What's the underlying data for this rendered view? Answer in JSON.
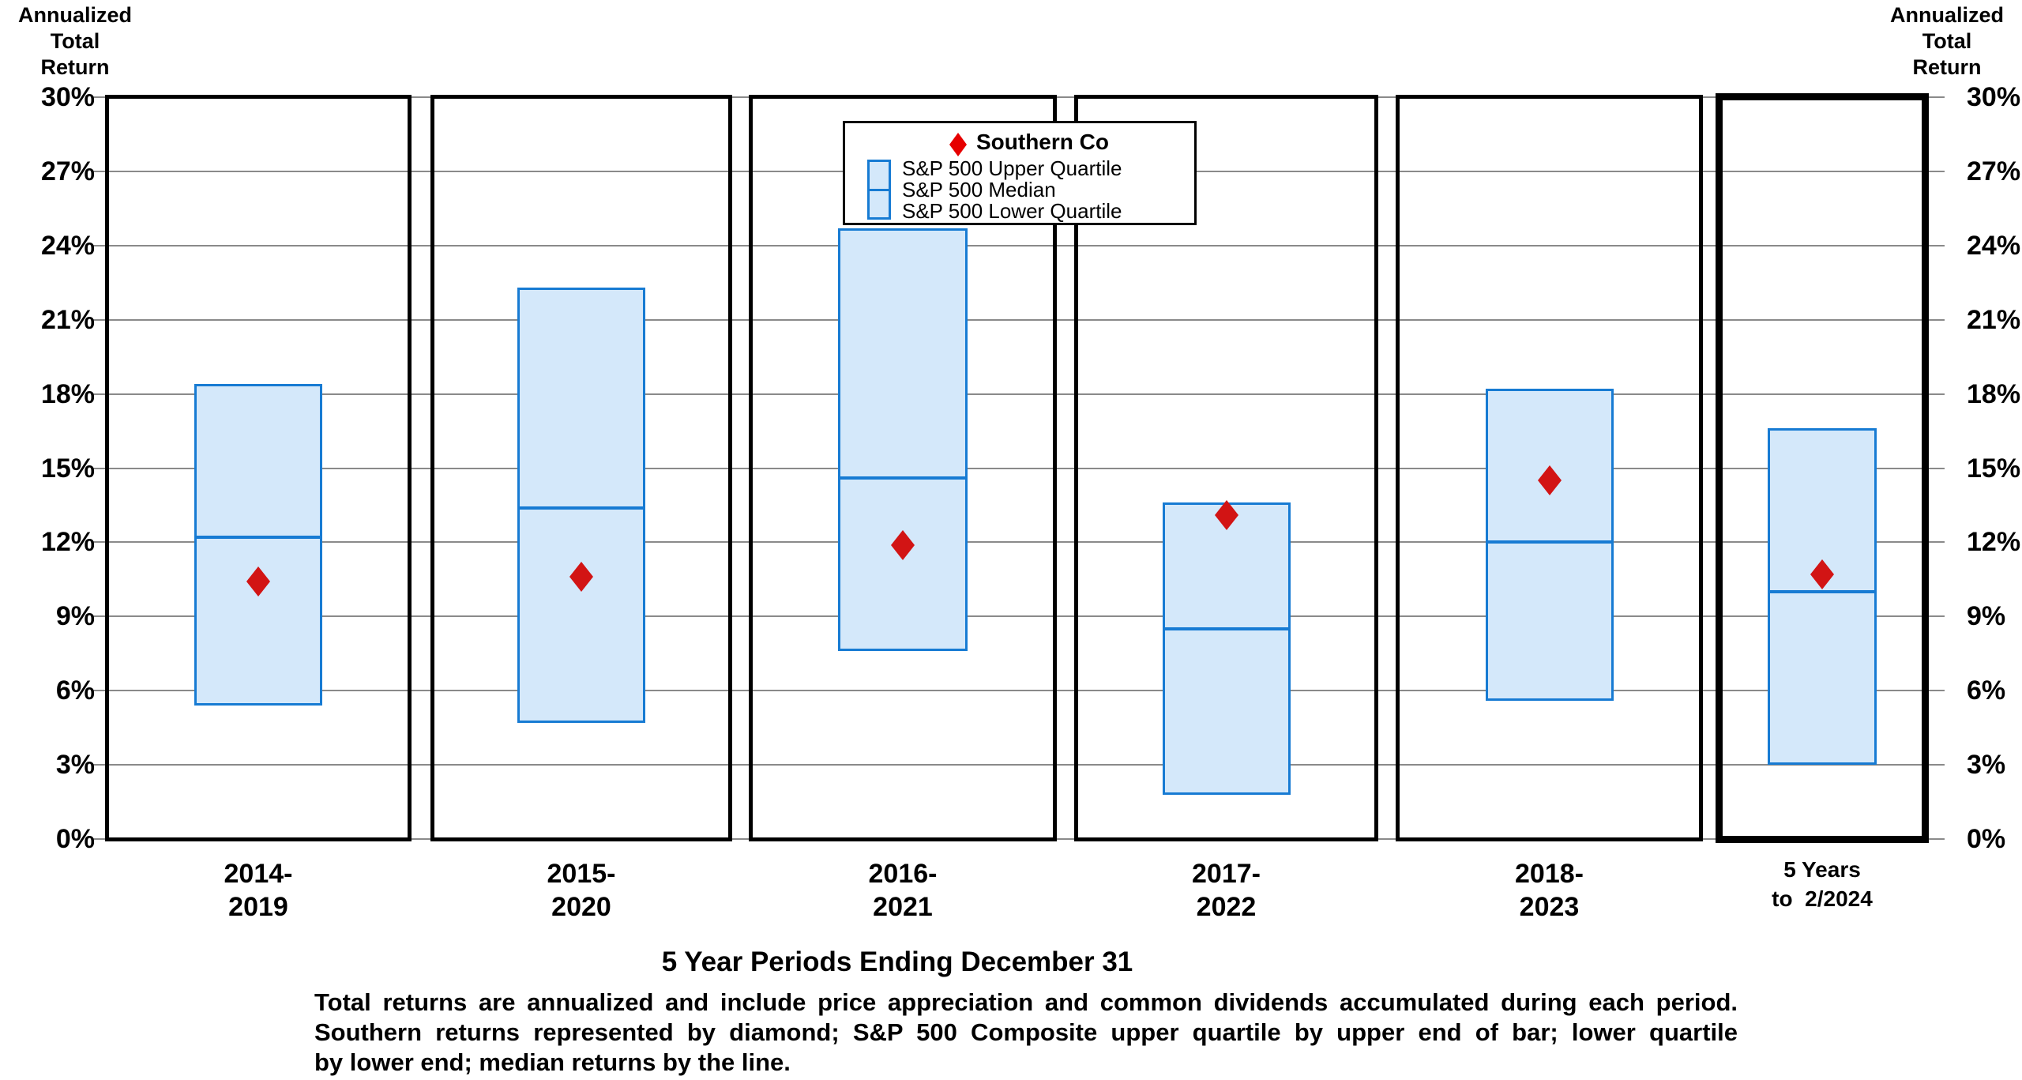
{
  "left_axis_header": {
    "line1": "Annualized",
    "line2": "Total",
    "line3": "Return"
  },
  "right_axis_header": {
    "line1": "Annualized",
    "line2": "Total",
    "line3": "Return"
  },
  "legend": {
    "series1_label": "Southern Co",
    "items": [
      "S&P 500 Upper Quartile",
      "S&P 500 Median",
      "S&P 500 Lower Quartile"
    ]
  },
  "x_axis_title": "5 Year Periods Ending December 31",
  "footnote": {
    "line1": "Total returns are annualized and include price appreciation and common dividends accumulated during each period.",
    "line2": "Southern returns represented by diamond; S&P 500 Composite upper quartile by upper end of bar; lower quartile",
    "line3": "by lower end; median returns by the line."
  },
  "colors": {
    "bar_fill": "#d4e8fa",
    "bar_border": "#177bd3",
    "diamond": "#d21414",
    "gridline": "#8a8a8a",
    "panel_border": "#000000"
  },
  "chart_data": {
    "type": "bar",
    "variant": "floating-quartile-range-with-point-marker",
    "categories": [
      [
        "2014-",
        "2019"
      ],
      [
        "2015-",
        "2020"
      ],
      [
        "2016-",
        "2021"
      ],
      [
        "2017-",
        "2022"
      ],
      [
        "2018-",
        "2023"
      ],
      [
        "5 Years",
        "to  2/2024"
      ]
    ],
    "series": [
      {
        "name": "Southern Co",
        "marker": "diamond",
        "values": [
          10.4,
          10.6,
          11.9,
          13.1,
          14.5,
          10.7
        ]
      },
      {
        "name": "S&P 500 Upper Quartile",
        "values": [
          18.4,
          22.3,
          24.7,
          13.6,
          18.2,
          16.6
        ]
      },
      {
        "name": "S&P 500 Median",
        "values": [
          12.2,
          13.4,
          14.6,
          8.5,
          12.0,
          10.0
        ]
      },
      {
        "name": "S&P 500 Lower Quartile",
        "values": [
          5.4,
          4.7,
          7.6,
          1.8,
          5.6,
          3.0
        ]
      }
    ],
    "ylabel": "Annualized Total Return",
    "xlabel": "5 Year Periods Ending December 31",
    "ylim": [
      0,
      30
    ],
    "yticks": [
      0,
      3,
      6,
      9,
      12,
      15,
      18,
      21,
      24,
      27,
      30
    ],
    "ytick_labels": [
      "0%",
      "3%",
      "6%",
      "9%",
      "12%",
      "15%",
      "18%",
      "21%",
      "24%",
      "27%",
      "30%"
    ],
    "grid": true,
    "legend_position": "top-center",
    "last_period_highlighted": true
  }
}
